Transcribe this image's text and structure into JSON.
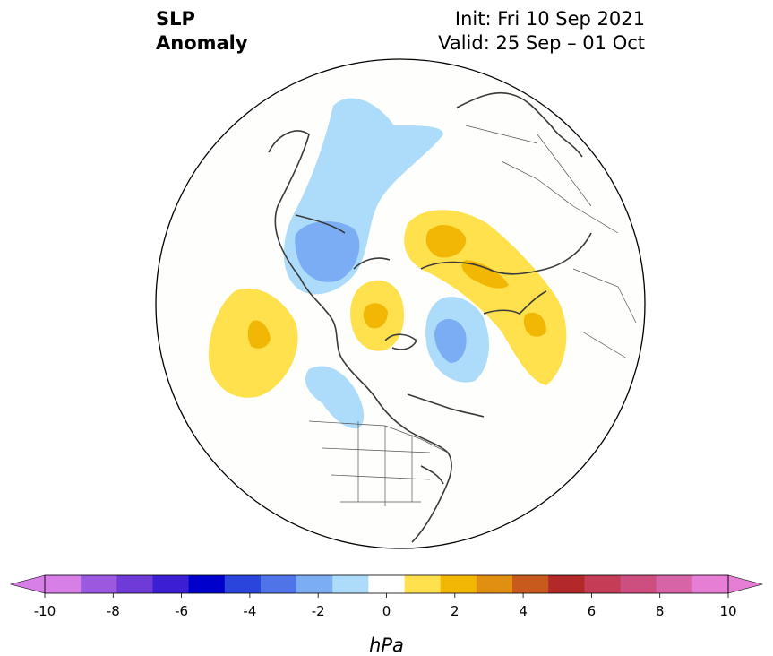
{
  "title": {
    "left_line1": "SLP",
    "left_line2": "Anomaly",
    "right_line1": "Init: Fri 10 Sep 2021",
    "right_line2": "Valid: 25 Sep – 01 Oct"
  },
  "colorbar": {
    "label": "hPa",
    "ticks": [
      "-10",
      "-8",
      "-6",
      "-4",
      "-2",
      "0",
      "2",
      "4",
      "6",
      "8",
      "10"
    ],
    "levels": [
      -10,
      -9,
      -8,
      -7,
      -6,
      -5,
      -4,
      -3,
      -2,
      -1,
      1,
      2,
      3,
      4,
      5,
      6,
      7,
      8,
      9,
      10
    ],
    "colors": [
      "#d77fe6",
      "#9b59e0",
      "#6e3bd9",
      "#3c1fd2",
      "#0000cd",
      "#2a45dc",
      "#4f74e8",
      "#7aadf4",
      "#addcfa",
      "#ffffff",
      "#ffe14d",
      "#f2b705",
      "#e08f10",
      "#c85a1e",
      "#b32828",
      "#c43c55",
      "#cc4f80",
      "#d864a8",
      "#e67ed6"
    ],
    "under_color": "#d77fe6",
    "over_color": "#e67ed6"
  },
  "map": {
    "projection": "north-polar-stereographic",
    "anomalies": [
      {
        "name": "north-atlantic-low",
        "sign": "negative",
        "peak_hpa": -3
      },
      {
        "name": "east-pacific-high",
        "sign": "positive",
        "peak_hpa": 2
      },
      {
        "name": "eurasia-high",
        "sign": "positive",
        "peak_hpa": 2
      },
      {
        "name": "arctic-canada-high",
        "sign": "positive",
        "peak_hpa": 2
      },
      {
        "name": "siberia-low",
        "sign": "negative",
        "peak_hpa": -3
      },
      {
        "name": "east-asia-high",
        "sign": "positive",
        "peak_hpa": 2
      },
      {
        "name": "northwest-us-low",
        "sign": "negative",
        "peak_hpa": -2
      }
    ]
  }
}
